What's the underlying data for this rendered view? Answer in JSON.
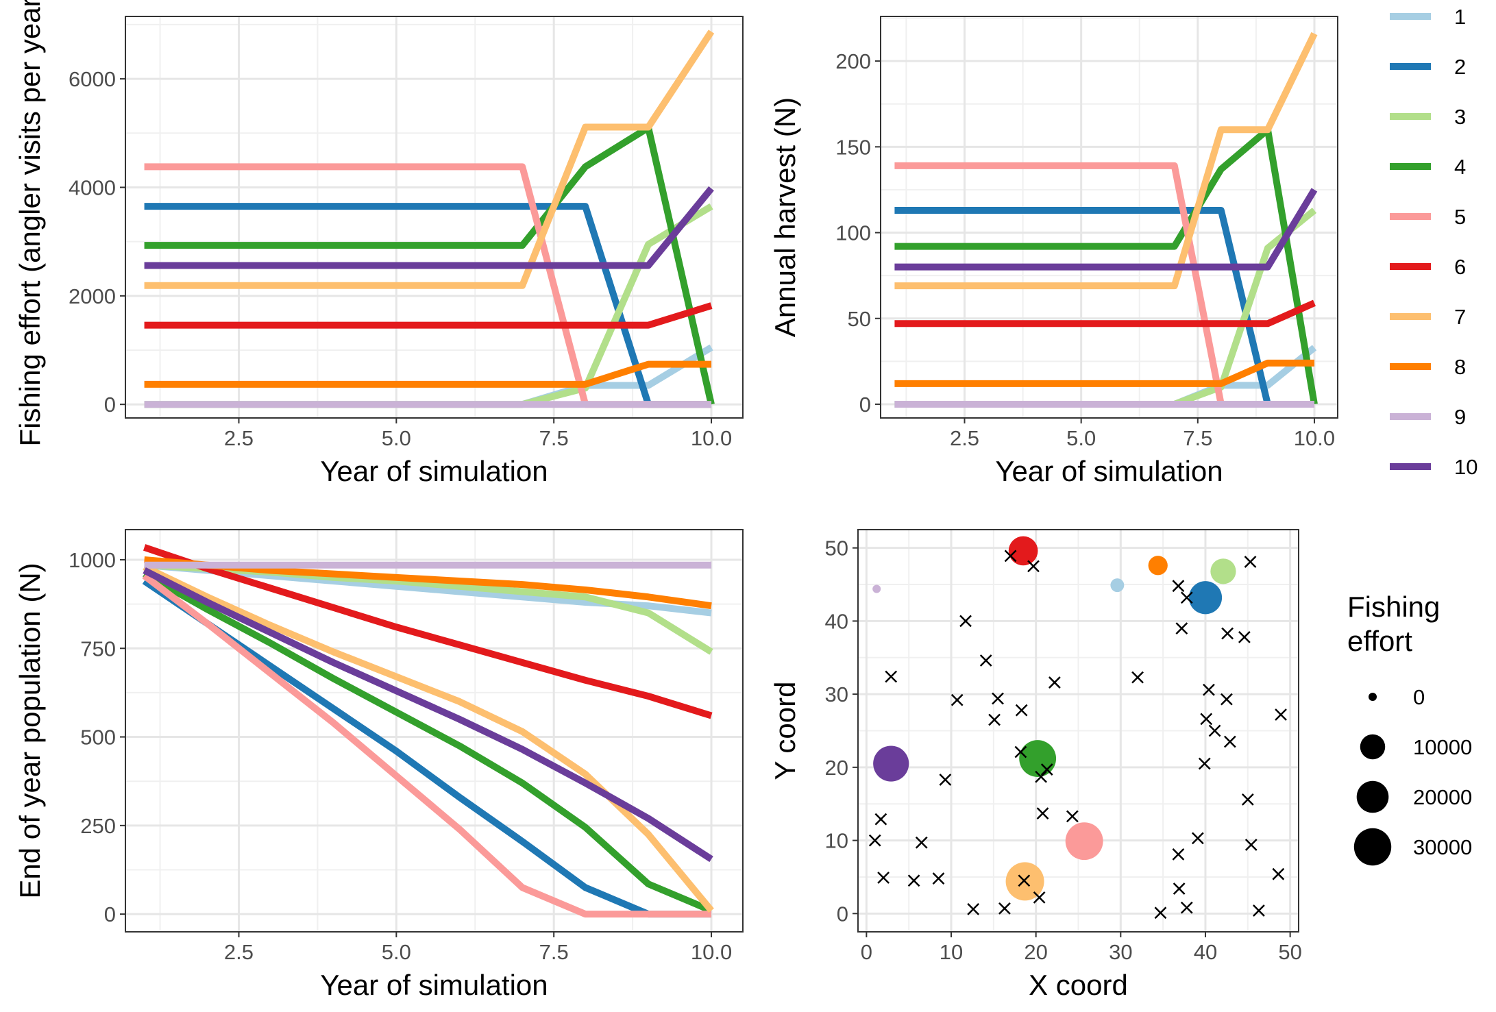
{
  "colors": {
    "1": "#a6cee3",
    "2": "#1f78b4",
    "3": "#b2df8a",
    "4": "#33a02c",
    "5": "#fb9a99",
    "6": "#e31a1c",
    "7": "#fdbf6f",
    "8": "#ff7f00",
    "9": "#cab2d6",
    "10": "#6a3d9a"
  },
  "chart_data": [
    {
      "type": "line",
      "xlabel": "Year of simulation",
      "ylabel": "Fishing effort (angler visits per year)",
      "xlim": [
        0.7,
        10.5
      ],
      "ylim": [
        -250,
        7150
      ],
      "x_ticks": [
        "2.5",
        "5.0",
        "7.5",
        "10.0"
      ],
      "y_ticks": [
        "0",
        "2000",
        "4000",
        "6000"
      ],
      "x": [
        1,
        2,
        3,
        4,
        5,
        6,
        7,
        8,
        9,
        10
      ],
      "series": [
        {
          "name": "1",
          "values": [
            0,
            0,
            0,
            0,
            0,
            0,
            0,
            350,
            350,
            1050
          ]
        },
        {
          "name": "2",
          "values": [
            3650,
            3650,
            3650,
            3650,
            3650,
            3650,
            3650,
            3650,
            0,
            0
          ]
        },
        {
          "name": "3",
          "values": [
            0,
            0,
            0,
            0,
            0,
            0,
            0,
            300,
            2950,
            3650
          ]
        },
        {
          "name": "4",
          "values": [
            2930,
            2930,
            2930,
            2930,
            2930,
            2930,
            2930,
            4380,
            5100,
            0
          ]
        },
        {
          "name": "5",
          "values": [
            4380,
            4380,
            4380,
            4380,
            4380,
            4380,
            4380,
            0,
            0,
            0
          ]
        },
        {
          "name": "6",
          "values": [
            1460,
            1460,
            1460,
            1460,
            1460,
            1460,
            1460,
            1460,
            1460,
            1820
          ]
        },
        {
          "name": "7",
          "values": [
            2190,
            2190,
            2190,
            2190,
            2190,
            2190,
            2190,
            5110,
            5110,
            6870
          ]
        },
        {
          "name": "8",
          "values": [
            370,
            370,
            370,
            370,
            370,
            370,
            370,
            370,
            740,
            740
          ]
        },
        {
          "name": "9",
          "values": [
            0,
            0,
            0,
            0,
            0,
            0,
            0,
            0,
            0,
            0
          ]
        },
        {
          "name": "10",
          "values": [
            2560,
            2560,
            2560,
            2560,
            2560,
            2560,
            2560,
            2560,
            2560,
            3980
          ]
        }
      ]
    },
    {
      "type": "line",
      "xlabel": "Year of simulation",
      "ylabel": "Annual harvest (N)",
      "xlim": [
        0.7,
        10.5
      ],
      "ylim": [
        -8,
        226
      ],
      "x_ticks": [
        "2.5",
        "5.0",
        "7.5",
        "10.0"
      ],
      "y_ticks": [
        "0",
        "50",
        "100",
        "150",
        "200"
      ],
      "x": [
        1,
        2,
        3,
        4,
        5,
        6,
        7,
        8,
        9,
        10
      ],
      "series": [
        {
          "name": "1",
          "values": [
            0,
            0,
            0,
            0,
            0,
            0,
            0,
            11,
            11,
            33
          ]
        },
        {
          "name": "2",
          "values": [
            113,
            113,
            113,
            113,
            113,
            113,
            113,
            113,
            0,
            0
          ]
        },
        {
          "name": "3",
          "values": [
            0,
            0,
            0,
            0,
            0,
            0,
            0,
            10,
            91,
            113
          ]
        },
        {
          "name": "4",
          "values": [
            92,
            92,
            92,
            92,
            92,
            92,
            92,
            137,
            160,
            0
          ]
        },
        {
          "name": "5",
          "values": [
            139,
            139,
            139,
            139,
            139,
            139,
            139,
            0,
            0,
            0
          ]
        },
        {
          "name": "6",
          "values": [
            47,
            47,
            47,
            47,
            47,
            47,
            47,
            47,
            47,
            59
          ]
        },
        {
          "name": "7",
          "values": [
            69,
            69,
            69,
            69,
            69,
            69,
            69,
            160,
            160,
            216
          ]
        },
        {
          "name": "8",
          "values": [
            12,
            12,
            12,
            12,
            12,
            12,
            12,
            12,
            24,
            24
          ]
        },
        {
          "name": "9",
          "values": [
            0,
            0,
            0,
            0,
            0,
            0,
            0,
            0,
            0,
            0
          ]
        },
        {
          "name": "10",
          "values": [
            80,
            80,
            80,
            80,
            80,
            80,
            80,
            80,
            80,
            125
          ]
        }
      ]
    },
    {
      "type": "line",
      "xlabel": "Year of simulation",
      "ylabel": "End of year population (N)",
      "xlim": [
        0.7,
        10.5
      ],
      "ylim": [
        -50,
        1085
      ],
      "x_ticks": [
        "2.5",
        "5.0",
        "7.5",
        "10.0"
      ],
      "y_ticks": [
        "0",
        "250",
        "500",
        "750",
        "1000"
      ],
      "x": [
        1,
        2,
        3,
        4,
        5,
        6,
        7,
        8,
        9,
        10
      ],
      "series": [
        {
          "name": "1",
          "values": [
            985,
            970,
            955,
            940,
            925,
            910,
            895,
            880,
            870,
            850
          ]
        },
        {
          "name": "2",
          "values": [
            940,
            820,
            700,
            580,
            460,
            330,
            205,
            75,
            0,
            0
          ]
        },
        {
          "name": "3",
          "values": [
            985,
            975,
            965,
            950,
            940,
            925,
            910,
            895,
            850,
            740
          ]
        },
        {
          "name": "4",
          "values": [
            960,
            860,
            765,
            665,
            570,
            475,
            370,
            245,
            85,
            10
          ]
        },
        {
          "name": "5",
          "values": [
            955,
            820,
            680,
            540,
            390,
            240,
            75,
            0,
            0,
            0
          ]
        },
        {
          "name": "6",
          "values": [
            1035,
            975,
            920,
            865,
            810,
            760,
            710,
            660,
            615,
            560
          ]
        },
        {
          "name": "7",
          "values": [
            980,
            895,
            815,
            740,
            670,
            600,
            515,
            395,
            225,
            10
          ]
        },
        {
          "name": "8",
          "values": [
            1000,
            985,
            970,
            960,
            950,
            940,
            930,
            915,
            895,
            870
          ]
        },
        {
          "name": "9",
          "values": [
            985,
            985,
            985,
            985,
            985,
            985,
            985,
            985,
            985,
            985
          ]
        },
        {
          "name": "10",
          "values": [
            970,
            880,
            795,
            710,
            630,
            550,
            465,
            370,
            270,
            155
          ]
        }
      ]
    },
    {
      "type": "scatter",
      "xlabel": "X coord",
      "ylabel": "Y coord",
      "xlim": [
        -1,
        51
      ],
      "ylim": [
        -2.5,
        52.5
      ],
      "x_ticks": [
        "0",
        "10",
        "20",
        "30",
        "40",
        "50"
      ],
      "y_ticks": [
        "0",
        "10",
        "20",
        "30",
        "40",
        "50"
      ],
      "sites": [
        {
          "name": "1",
          "x": 29.6,
          "y": 44.9,
          "effort": 1050
        },
        {
          "name": "2",
          "x": 40.0,
          "y": 43.2,
          "effort": 21900
        },
        {
          "name": "3",
          "x": 42.1,
          "y": 46.8,
          "effort": 10600
        },
        {
          "name": "4",
          "x": 20.2,
          "y": 21.2,
          "effort": 29200
        },
        {
          "name": "5",
          "x": 25.7,
          "y": 9.9,
          "effort": 30700
        },
        {
          "name": "6",
          "x": 18.5,
          "y": 49.6,
          "effort": 15700
        },
        {
          "name": "7",
          "x": 18.7,
          "y": 4.4,
          "effort": 32300
        },
        {
          "name": "8",
          "x": 34.4,
          "y": 47.6,
          "effort": 4400
        },
        {
          "name": "9",
          "x": 1.2,
          "y": 44.4,
          "effort": 0
        },
        {
          "name": "10",
          "x": 2.9,
          "y": 20.5,
          "effort": 26900
        }
      ],
      "crosses": [
        [
          17.0,
          48.9
        ],
        [
          19.7,
          47.5
        ],
        [
          11.7,
          40.0
        ],
        [
          14.1,
          34.6
        ],
        [
          2.9,
          32.4
        ],
        [
          10.7,
          29.2
        ],
        [
          15.5,
          29.4
        ],
        [
          15.1,
          26.5
        ],
        [
          18.3,
          27.8
        ],
        [
          22.2,
          31.6
        ],
        [
          32.0,
          32.3
        ],
        [
          36.8,
          44.8
        ],
        [
          37.8,
          43.2
        ],
        [
          37.2,
          39.0
        ],
        [
          42.6,
          38.3
        ],
        [
          44.6,
          37.8
        ],
        [
          45.3,
          48.1
        ],
        [
          40.4,
          30.6
        ],
        [
          42.5,
          29.3
        ],
        [
          40.1,
          26.6
        ],
        [
          41.1,
          25.0
        ],
        [
          42.9,
          23.5
        ],
        [
          39.9,
          20.5
        ],
        [
          48.9,
          27.2
        ],
        [
          18.2,
          22.1
        ],
        [
          20.6,
          18.7
        ],
        [
          21.3,
          19.7
        ],
        [
          9.3,
          18.3
        ],
        [
          45.0,
          15.6
        ],
        [
          20.8,
          13.7
        ],
        [
          24.3,
          13.3
        ],
        [
          1.7,
          12.9
        ],
        [
          1.0,
          10.0
        ],
        [
          6.5,
          9.7
        ],
        [
          39.1,
          10.3
        ],
        [
          36.8,
          8.1
        ],
        [
          45.4,
          9.4
        ],
        [
          2.0,
          4.9
        ],
        [
          5.6,
          4.5
        ],
        [
          8.5,
          4.8
        ],
        [
          18.6,
          4.5
        ],
        [
          48.6,
          5.4
        ],
        [
          36.9,
          3.4
        ],
        [
          20.4,
          2.2
        ],
        [
          12.6,
          0.6
        ],
        [
          16.3,
          0.7
        ],
        [
          37.8,
          0.8
        ],
        [
          34.7,
          0.1
        ],
        [
          46.3,
          0.4
        ]
      ]
    }
  ],
  "color_legend": [
    "1",
    "2",
    "3",
    "4",
    "5",
    "6",
    "7",
    "8",
    "9",
    "10"
  ],
  "size_legend": {
    "title_line1": "Fishing",
    "title_line2": "effort",
    "entries": [
      "0",
      "10000",
      "20000",
      "30000"
    ],
    "values": [
      0,
      10000,
      20000,
      30000
    ]
  }
}
